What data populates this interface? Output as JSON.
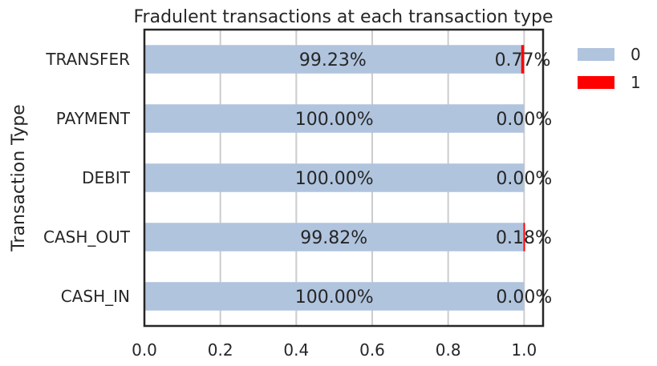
{
  "chart_data": {
    "type": "bar",
    "orientation": "horizontal",
    "stacked": true,
    "title": "Fradulent transactions at each transaction type",
    "xlabel": "",
    "ylabel": "Transaction Type",
    "categories": [
      "CASH_IN",
      "CASH_OUT",
      "DEBIT",
      "PAYMENT",
      "TRANSFER"
    ],
    "series": [
      {
        "name": "0",
        "color": "#b0c4de",
        "values": [
          1.0,
          0.9982,
          1.0,
          1.0,
          0.9923
        ]
      },
      {
        "name": "1",
        "color": "#ff0000",
        "values": [
          0.0,
          0.0018,
          0.0,
          0.0,
          0.0077
        ]
      }
    ],
    "bar_labels": [
      {
        "category": "CASH_IN",
        "labels": [
          "100.00%",
          "0.00%"
        ]
      },
      {
        "category": "CASH_OUT",
        "labels": [
          "99.82%",
          "0.18%"
        ]
      },
      {
        "category": "DEBIT",
        "labels": [
          "100.00%",
          "0.00%"
        ]
      },
      {
        "category": "PAYMENT",
        "labels": [
          "100.00%",
          "0.00%"
        ]
      },
      {
        "category": "TRANSFER",
        "labels": [
          "99.23%",
          "0.77%"
        ]
      }
    ],
    "xlim": [
      0.0,
      1.05
    ],
    "xticks": [
      0.0,
      0.2,
      0.4,
      0.6,
      0.8,
      1.0
    ],
    "xtick_labels": [
      "0.0",
      "0.2",
      "0.4",
      "0.6",
      "0.8",
      "1.0"
    ],
    "grid": "vertical",
    "legend_position": "outside-top-right"
  }
}
